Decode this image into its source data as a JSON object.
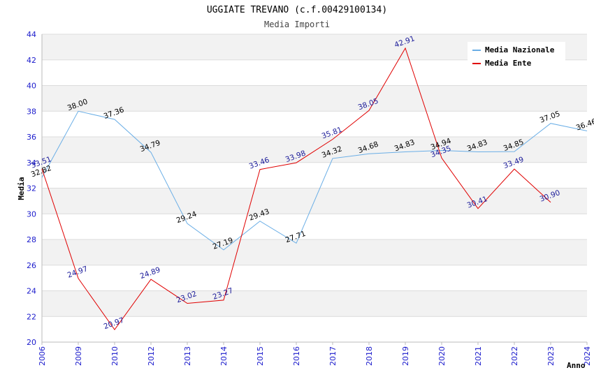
{
  "chart_data": {
    "type": "line",
    "title": "UGGIATE TREVANO (c.f.00429100134)",
    "subtitle": "Media Importi",
    "xlabel": "Anno",
    "ylabel": "Media",
    "categories": [
      "2006",
      "2009",
      "2010",
      "2012",
      "2013",
      "2014",
      "2015",
      "2016",
      "2017",
      "2018",
      "2019",
      "2020",
      "2021",
      "2022",
      "2023",
      "2024"
    ],
    "ylim": [
      20,
      44
    ],
    "yticks": [
      20,
      22,
      24,
      26,
      28,
      30,
      32,
      34,
      36,
      38,
      40,
      42,
      44
    ],
    "grid": true,
    "legend_position": "top-right",
    "series": [
      {
        "name": "Media Nazionale",
        "color": "#6aaee6",
        "values": [
          32.82,
          38.0,
          37.36,
          34.79,
          29.24,
          27.19,
          29.43,
          27.71,
          34.32,
          34.68,
          34.83,
          34.94,
          34.83,
          34.85,
          37.05,
          36.46
        ],
        "labels": [
          "32.82",
          "38.00",
          "37.36",
          "34.79",
          "29.24",
          "27.19",
          "29.43",
          "27.71",
          "34.32",
          "34.68",
          "34.83",
          "34.94",
          "34.83",
          "34.85",
          "37.05",
          "36.46"
        ]
      },
      {
        "name": "Media Ente",
        "color": "#e00000",
        "values": [
          33.51,
          24.97,
          20.97,
          24.89,
          23.02,
          23.27,
          33.46,
          33.98,
          35.81,
          38.05,
          42.91,
          34.35,
          30.41,
          33.49,
          30.9,
          null
        ],
        "labels": [
          "33.51",
          "24.97",
          "20.97",
          "24.89",
          "23.02",
          "23.27",
          "33.46",
          "33.98",
          "35.81",
          "38.05",
          "42.91",
          "34.35",
          "30.41",
          "33.49",
          "30.90",
          null
        ]
      }
    ]
  }
}
